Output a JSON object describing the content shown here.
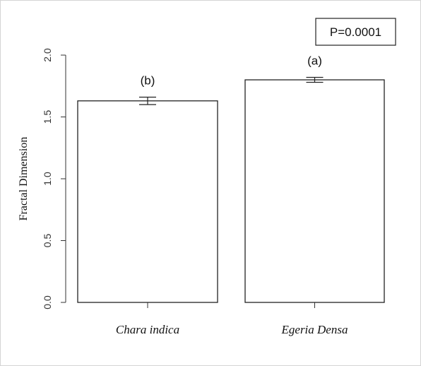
{
  "chart_data": {
    "type": "bar",
    "categories": [
      "Chara indica",
      "Egeria Densa"
    ],
    "values": [
      1.63,
      1.8
    ],
    "errors": [
      0.03,
      0.02
    ],
    "significance_labels": [
      "(b)",
      "(a)"
    ],
    "ylabel": "Fractal Dimension",
    "xlabel": "",
    "ylim": [
      0,
      2.0
    ],
    "yticks": [
      0.0,
      0.5,
      1.0,
      1.5,
      2.0
    ],
    "ytick_labels": [
      "0.0",
      "0.5",
      "1.0",
      "1.5",
      "2.0"
    ],
    "annotation": "P=0.0001",
    "grid": false,
    "bar_fill": "#ffffff",
    "bar_stroke": "#222222"
  }
}
